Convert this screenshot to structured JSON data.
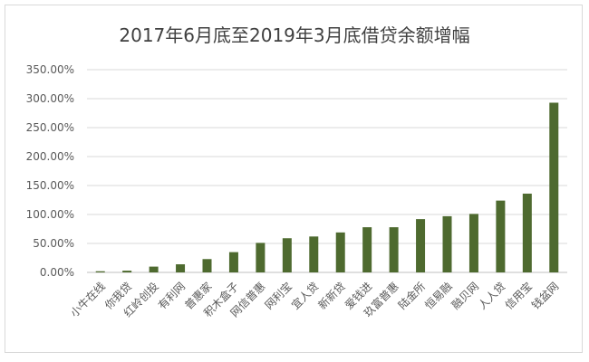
{
  "chart_data": {
    "type": "bar",
    "title": "2017年6月底至2019年3月底借贷余额增幅",
    "xlabel": "",
    "ylabel": "",
    "ylim": [
      0,
      350
    ],
    "yticks": [
      0,
      50,
      100,
      150,
      200,
      250,
      300,
      350
    ],
    "ytick_labels": [
      "0.00%",
      "50.00%",
      "100.00%",
      "150.00%",
      "200.00%",
      "250.00%",
      "300.00%",
      "350.00%"
    ],
    "grid": true,
    "legend": "none",
    "bar_color": "#4e6a2f",
    "categories": [
      "小牛在线",
      "你我贷",
      "红岭创投",
      "有利网",
      "普惠家",
      "积木盒子",
      "网信普惠",
      "网利宝",
      "宜人贷",
      "新新贷",
      "爱钱进",
      "玖富普惠",
      "陆金所",
      "恒易融",
      "融贝网",
      "人人贷",
      "信用宝",
      "钱盆网"
    ],
    "values": [
      2,
      3,
      10,
      14,
      23,
      35,
      51,
      59,
      62,
      69,
      78,
      78,
      92,
      97,
      101,
      124,
      136,
      293
    ]
  }
}
